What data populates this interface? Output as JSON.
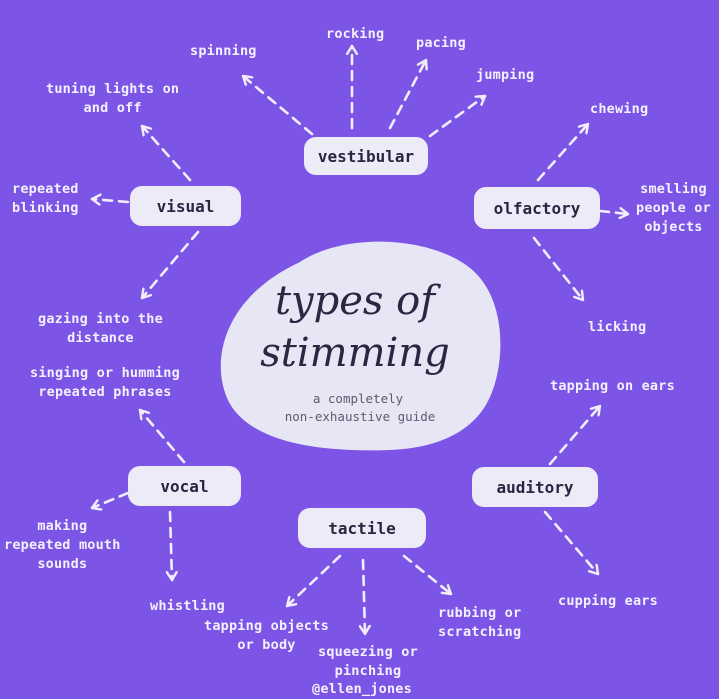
{
  "colors": {
    "background": "#7d55e6",
    "pill": "#ecebf7",
    "blob": "#e7e6f4",
    "label_text": "#f4f1ff",
    "arrow": "#f1eefc",
    "title_text": "#2d2542"
  },
  "center": {
    "title_line1": "types of",
    "title_line2": "stimming",
    "subtitle_line1": "a completely",
    "subtitle_line2": "non-exhaustive guide"
  },
  "categories": {
    "vestibular": "vestibular",
    "visual": "visual",
    "olfactory": "olfactory",
    "vocal": "vocal",
    "auditory": "auditory",
    "tactile": "tactile"
  },
  "examples": {
    "spinning": "spinning",
    "rocking": "rocking",
    "pacing": "pacing",
    "jumping": "jumping",
    "tuning_lights": "tuning lights on\nand off",
    "repeated_blinking": "repeated\nblinking",
    "gazing": "gazing into the\ndistance",
    "chewing": "chewing",
    "smelling": "smelling\npeople or\nobjects",
    "licking": "licking",
    "singing": "singing or humming\nrepeated phrases",
    "mouth_sounds": "making\nrepeated mouth\nsounds",
    "whistling": "whistling",
    "tapping_ears": "tapping on ears",
    "cupping_ears": "cupping ears",
    "tapping_objects": "tapping objects\nor body",
    "squeezing": "squeezing or\npinching",
    "rubbing": "rubbing or\nscratching"
  },
  "credit": "@ellen_jones"
}
